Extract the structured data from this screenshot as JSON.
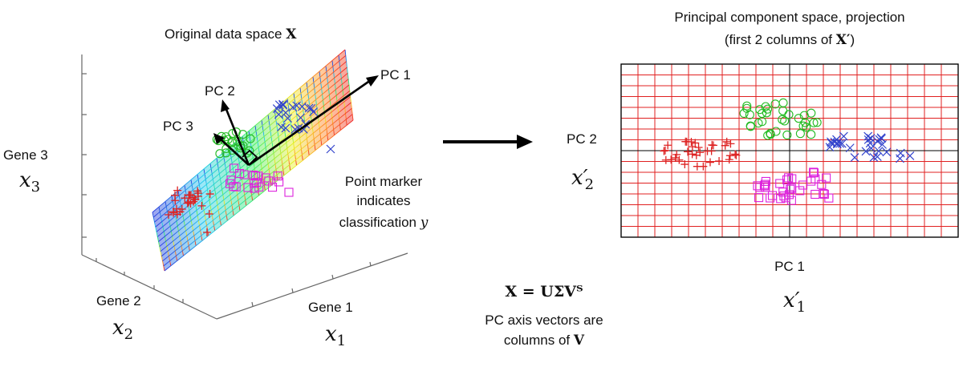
{
  "left_panel": {
    "title_text": "Original data space ",
    "title_symbol": "X",
    "axis_z_label": "Gene 3",
    "axis_z_symbol": "x",
    "axis_z_sub": "3",
    "axis_y_label": "Gene 2",
    "axis_y_symbol": "x",
    "axis_y_sub": "2",
    "axis_x_label": "Gene 1",
    "axis_x_symbol": "x",
    "axis_x_sub": "1",
    "pc1_label": "PC 1",
    "pc2_label": "PC 2",
    "pc3_label": "PC 3"
  },
  "annotation": {
    "line1": "Point marker",
    "line2": "indicates",
    "line3": "classification ",
    "symbol": "y"
  },
  "formula": {
    "equation": "X = UΣVᵀ",
    "line1": "PC axis vectors are",
    "line2": "columns of ",
    "symbol": "V"
  },
  "right_panel": {
    "title_line1": "Principal component space, projection",
    "title_line2_text": "(first 2 columns of ",
    "title_line2_symbol": "X′",
    "title_line2_end": ")",
    "x_label": "PC 1",
    "x_symbol": "x′",
    "x_sub": "1",
    "y_label": "PC 2",
    "y_symbol": "x′",
    "y_sub": "2"
  },
  "colors": {
    "class_plus": "#dd2222",
    "class_circle": "#22bb22",
    "class_cross": "#3344cc",
    "class_square": "#dd22dd",
    "grid": "#e02020"
  },
  "marker_shapes": [
    "plus",
    "circle",
    "cross",
    "square"
  ],
  "arrow_icon": "right-arrow-icon"
}
